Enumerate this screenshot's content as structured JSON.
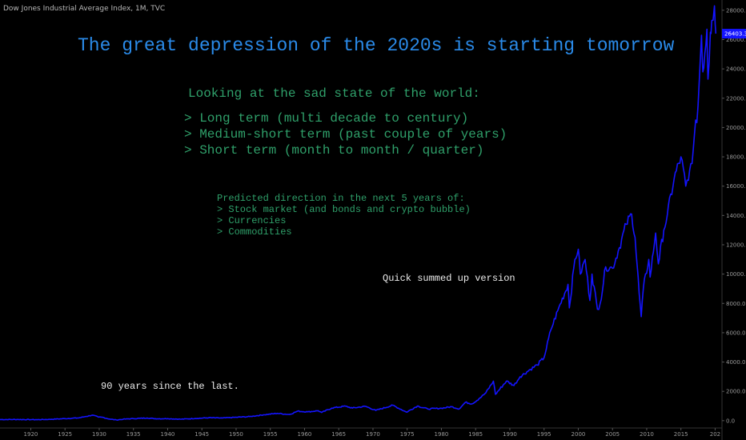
{
  "symbol_title": "Dow Jones Industrial Average Index, 1M, TVC",
  "annotations": {
    "title": "The great depression of the 2020s is starting tomorrow",
    "heading": "Looking at the sad state of the world:",
    "list1": [
      "> Long term (multi decade to century)",
      "> Medium-short term (past couple of years)",
      "> Short term (month to month / quarter)"
    ],
    "list2": [
      "Predicted direction in the next 5 years of:",
      "> Stock market (and bonds and crypto bubble)",
      "> Currencies",
      "> Commodities"
    ],
    "quick": "Quick summed up version",
    "ninety": "90 years since the last."
  },
  "colors": {
    "line": "#1414ff",
    "price_tag": "#1414ff",
    "title": "#2a8ae8",
    "text_green": "#2fa06a"
  },
  "chart_data": {
    "type": "line",
    "title": "",
    "xlabel": "",
    "ylabel": "",
    "xlim": [
      1915.5,
      2021
    ],
    "ylim": [
      -500,
      28700
    ],
    "grid": false,
    "x_ticks": [
      "1920",
      "1925",
      "1930",
      "1935",
      "1940",
      "1945",
      "1950",
      "1955",
      "1960",
      "1965",
      "1970",
      "1975",
      "1980",
      "1985",
      "1990",
      "1995",
      "2000",
      "2005",
      "2010",
      "2015",
      "202"
    ],
    "y_ticks": [
      "0.0",
      "2000.0",
      "4000.0",
      "6000.0",
      "8000.0",
      "10000.0",
      "12000.0",
      "14000.0",
      "16000.0",
      "18000.0",
      "20000.0",
      "22000.0",
      "24000.0",
      "26000.0",
      "28000.0"
    ],
    "last_price_label": "26403.3",
    "last_price": 26403.3,
    "series": [
      {
        "values": [
          [
            1915.5,
            80
          ],
          [
            1918,
            82
          ],
          [
            1920,
            75
          ],
          [
            1921,
            70
          ],
          [
            1923,
            95
          ],
          [
            1925,
            140
          ],
          [
            1927,
            190
          ],
          [
            1928,
            280
          ],
          [
            1929,
            380
          ],
          [
            1929.9,
            240
          ],
          [
            1930.5,
            230
          ],
          [
            1931.5,
            110
          ],
          [
            1932.5,
            50
          ],
          [
            1933.5,
            100
          ],
          [
            1935,
            140
          ],
          [
            1937,
            180
          ],
          [
            1938.5,
            130
          ],
          [
            1940,
            140
          ],
          [
            1942,
            100
          ],
          [
            1944,
            150
          ],
          [
            1946,
            200
          ],
          [
            1948,
            180
          ],
          [
            1950,
            230
          ],
          [
            1952,
            280
          ],
          [
            1954,
            400
          ],
          [
            1956,
            500
          ],
          [
            1957.8,
            420
          ],
          [
            1959,
            650
          ],
          [
            1960.5,
            600
          ],
          [
            1962,
            680
          ],
          [
            1962.5,
            560
          ],
          [
            1964,
            860
          ],
          [
            1966,
            990
          ],
          [
            1967,
            860
          ],
          [
            1968.9,
            980
          ],
          [
            1970.4,
            700
          ],
          [
            1972.9,
            1050
          ],
          [
            1974.9,
            580
          ],
          [
            1976.5,
            1000
          ],
          [
            1978,
            800
          ],
          [
            1980,
            850
          ],
          [
            1981.5,
            950
          ],
          [
            1982.6,
            800
          ],
          [
            1983.5,
            1250
          ],
          [
            1984.5,
            1150
          ],
          [
            1985.5,
            1500
          ],
          [
            1986.5,
            1900
          ],
          [
            1987.6,
            2700
          ],
          [
            1987.9,
            1800
          ],
          [
            1989.5,
            2700
          ],
          [
            1990.6,
            2400
          ],
          [
            1991.5,
            3000
          ],
          [
            1993,
            3500
          ],
          [
            1994,
            3800
          ],
          [
            1995,
            4300
          ],
          [
            1996,
            6200
          ],
          [
            1997,
            7500
          ],
          [
            1998.5,
            9300
          ],
          [
            1998.7,
            7700
          ],
          [
            1999.5,
            11000
          ],
          [
            2000,
            11700
          ],
          [
            2000.3,
            10000
          ],
          [
            2001,
            11000
          ],
          [
            2001.7,
            8200
          ],
          [
            2002,
            10000
          ],
          [
            2002.8,
            7600
          ],
          [
            2003.2,
            8000
          ],
          [
            2004,
            10500
          ],
          [
            2005,
            10400
          ],
          [
            2006,
            11800
          ],
          [
            2007,
            13400
          ],
          [
            2007.8,
            14100
          ],
          [
            2008.3,
            12500
          ],
          [
            2008.9,
            8700
          ],
          [
            2009.2,
            7100
          ],
          [
            2009.5,
            9000
          ],
          [
            2010.3,
            11000
          ],
          [
            2010.5,
            9800
          ],
          [
            2011.3,
            12800
          ],
          [
            2011.7,
            10700
          ],
          [
            2012.5,
            13000
          ],
          [
            2013,
            14000
          ],
          [
            2014,
            16500
          ],
          [
            2015,
            18000
          ],
          [
            2015.7,
            16000
          ],
          [
            2016.1,
            16400
          ],
          [
            2016.8,
            18500
          ],
          [
            2017.5,
            21500
          ],
          [
            2018,
            26300
          ],
          [
            2018.2,
            23800
          ],
          [
            2018.8,
            26700
          ],
          [
            2018.95,
            23300
          ],
          [
            2019.3,
            26500
          ],
          [
            2019.5,
            27300
          ],
          [
            2019.9,
            28300
          ],
          [
            2020.1,
            26400
          ]
        ]
      }
    ]
  }
}
